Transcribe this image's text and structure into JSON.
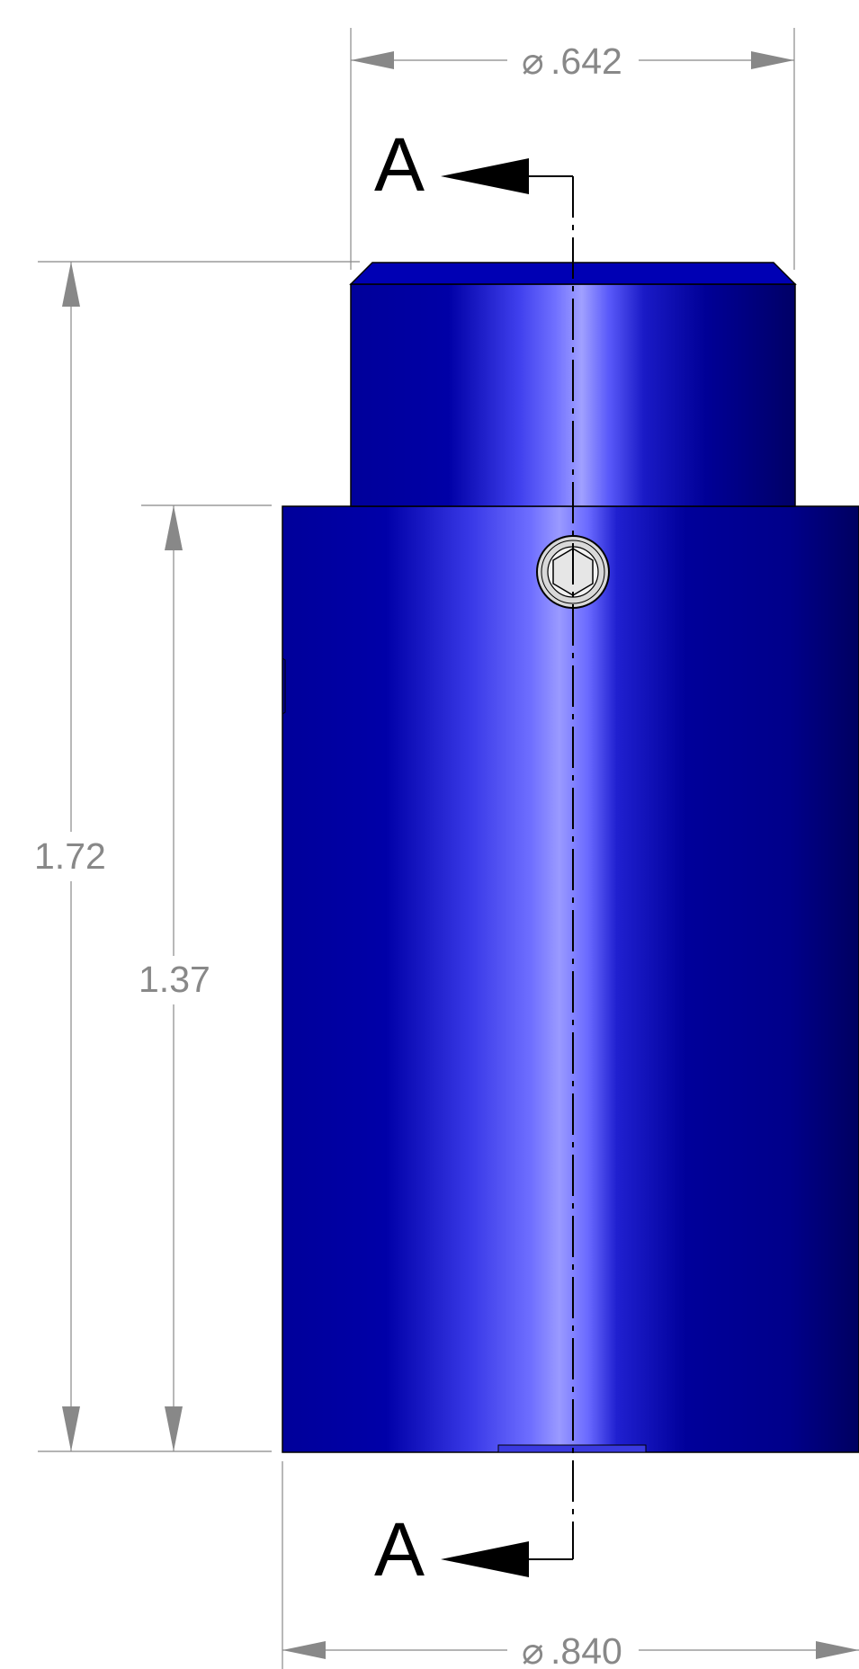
{
  "drawing": {
    "units_note": "",
    "dimensions": {
      "top_diameter": {
        "symbol": "⌀",
        "value": ".642"
      },
      "bottom_diameter": {
        "symbol": "⌀",
        "value": ".840"
      },
      "overall_height": {
        "value": "1.72"
      },
      "body_height": {
        "value": "1.37"
      }
    },
    "section_labels": {
      "top": "A",
      "bottom": "A"
    },
    "colors": {
      "dimension_line": "#888888",
      "body_dark": "#00008e",
      "body_light": "#9a9aff",
      "outline": "#000000",
      "fitting_fill": "#d9d9d9"
    },
    "icons": {
      "fitting": "hex-socket-icon"
    }
  }
}
